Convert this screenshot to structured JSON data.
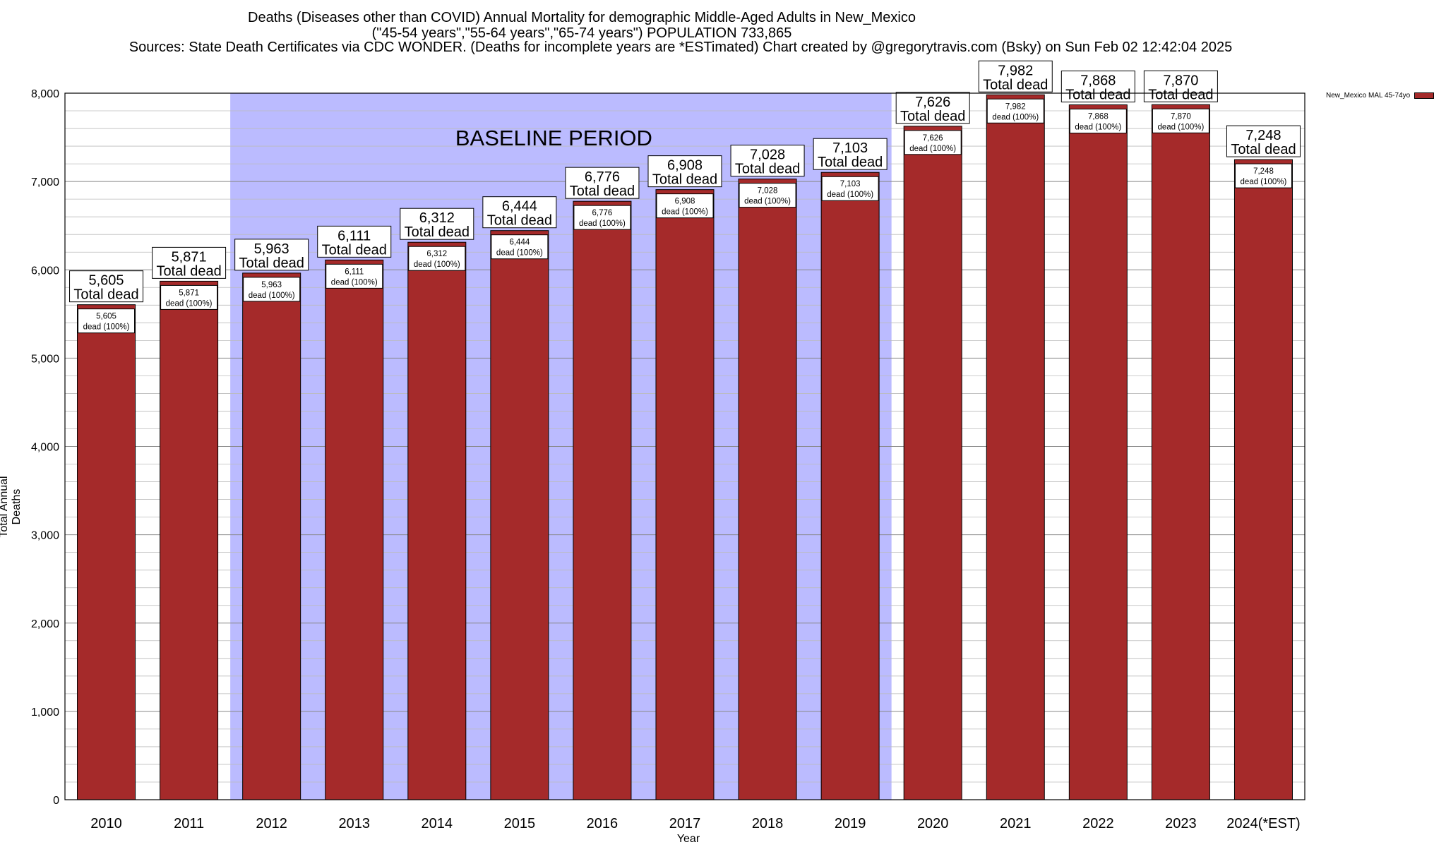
{
  "chart_data": {
    "type": "bar",
    "title_lines": [
      "Deaths (Diseases other than COVID) Annual Mortality for demographic Middle-Aged Adults in New_Mexico",
      "(\"45-54 years\",\"55-64 years\",\"65-74 years\") POPULATION 733,865",
      "Sources: State Death Certificates via CDC WONDER. (Deaths for incomplete years are *ESTimated)              Chart created by @gregorytravis.com (Bsky) on Sun Feb 02 12:42:04 2025"
    ],
    "xlabel": "Year",
    "ylabel": "Total Annual Deaths",
    "ylim": [
      0,
      8000
    ],
    "yticks": [
      0,
      1000,
      2000,
      3000,
      4000,
      5000,
      6000,
      7000,
      8000
    ],
    "ytick_labels": [
      "0",
      "1,000",
      "2,000",
      "3,000",
      "4,000",
      "5,000",
      "6,000",
      "7,000",
      "8,000"
    ],
    "categories": [
      "2010",
      "2011",
      "2012",
      "2013",
      "2014",
      "2015",
      "2016",
      "2017",
      "2018",
      "2019",
      "2020",
      "2021",
      "2022",
      "2023",
      "2024(*EST)"
    ],
    "series": [
      {
        "name": "New_Mexico MAL 45-74yo",
        "color": "#a52a2a",
        "values": [
          5605,
          5871,
          5963,
          6111,
          6312,
          6444,
          6776,
          6908,
          7028,
          7103,
          7626,
          7982,
          7868,
          7870,
          7248
        ]
      }
    ],
    "value_labels": [
      "5,605",
      "5,871",
      "5,963",
      "6,111",
      "6,312",
      "6,444",
      "6,776",
      "6,908",
      "7,028",
      "7,103",
      "7,626",
      "7,982",
      "7,868",
      "7,870",
      "7,248"
    ],
    "top_label_suffix": "Total dead",
    "inner_label_suffix": "dead (100%)",
    "baseline_period": {
      "label": "BASELINE PERIOD",
      "from_category": "2012",
      "to_category": "2019",
      "color": "#bbbbff"
    },
    "grid": true,
    "legend_position": "top-right"
  }
}
